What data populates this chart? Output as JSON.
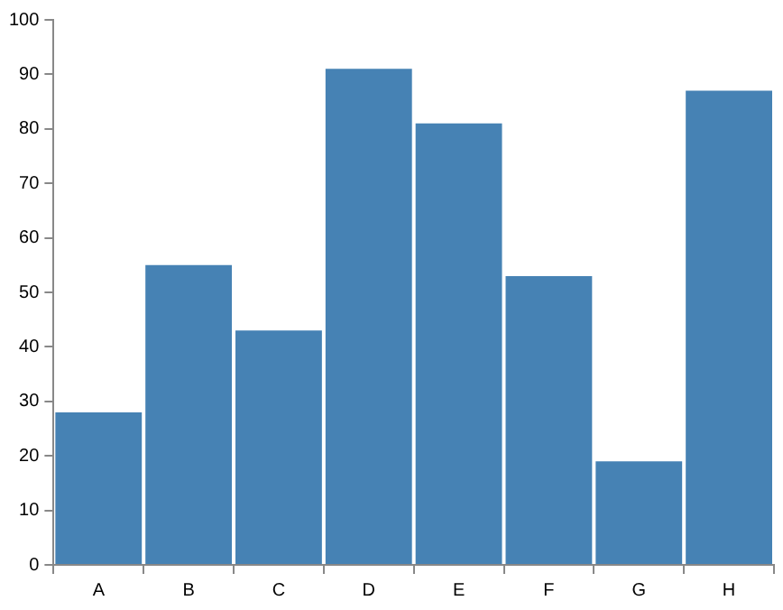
{
  "chart_data": {
    "type": "bar",
    "categories": [
      "A",
      "B",
      "C",
      "D",
      "E",
      "F",
      "G",
      "H"
    ],
    "values": [
      28,
      55,
      43,
      91,
      81,
      53,
      19,
      87
    ],
    "color": "#4682b4",
    "ylim": [
      0,
      100
    ],
    "yticks": [
      0,
      10,
      20,
      30,
      40,
      50,
      60,
      70,
      80,
      90,
      100
    ],
    "grid": false,
    "legend": false
  }
}
